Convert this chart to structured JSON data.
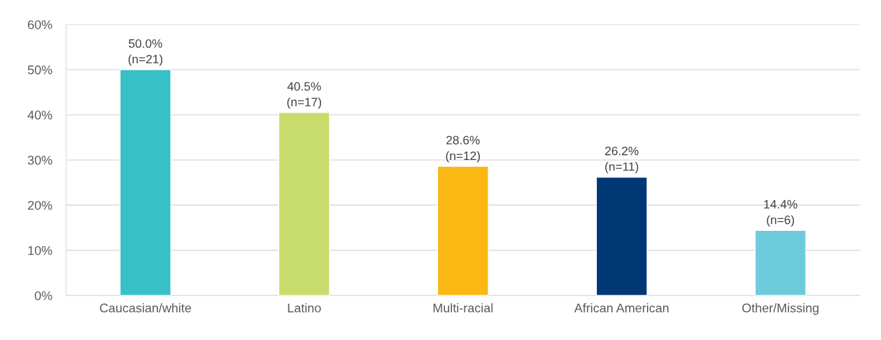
{
  "chart_data": {
    "type": "bar",
    "categories": [
      "Caucasian/white",
      "Latino",
      "Multi-racial",
      "African American",
      "Other/Missing"
    ],
    "values": [
      50.0,
      40.5,
      28.6,
      26.2,
      14.4
    ],
    "colors": [
      "#37c0c6",
      "#c8dc6c",
      "#fbb714",
      "#003876",
      "#6ecbdb"
    ],
    "value_labels": [
      "50.0%\n(n=21)",
      "40.5%\n(n=17)",
      "28.6%\n(n=12)",
      "26.2%\n(n=11)",
      "14.4%\n(n=6)"
    ],
    "ylim": [
      0,
      60
    ],
    "yticks": [
      {
        "value": 0,
        "label": "0%"
      },
      {
        "value": 10,
        "label": "10%"
      },
      {
        "value": 20,
        "label": "20%"
      },
      {
        "value": 30,
        "label": "30%"
      },
      {
        "value": 40,
        "label": "40%"
      },
      {
        "value": 50,
        "label": "50%"
      },
      {
        "value": 60,
        "label": "60%"
      }
    ],
    "grid": "y",
    "legend": false
  }
}
